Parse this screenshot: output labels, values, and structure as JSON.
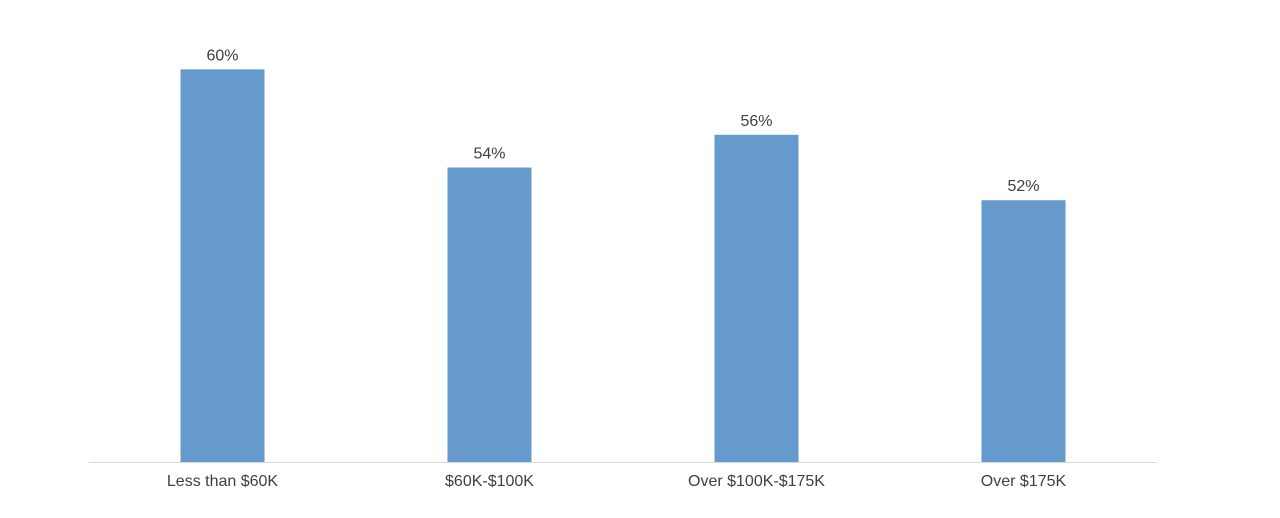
{
  "chart_data": {
    "type": "bar",
    "categories": [
      "Less than $60K",
      "$60K-$100K",
      "Over $100K-$175K",
      "Over $175K"
    ],
    "values": [
      60,
      54,
      56,
      52
    ],
    "value_labels": [
      "60%",
      "54%",
      "56%",
      "52%"
    ],
    "title": "",
    "xlabel": "",
    "ylabel": "",
    "ylim": [
      36,
      61
    ],
    "grid": false,
    "legend": "none",
    "bar_color": "#6699CC",
    "axis_color": "#D9D9D9",
    "label_color": "#404040"
  }
}
